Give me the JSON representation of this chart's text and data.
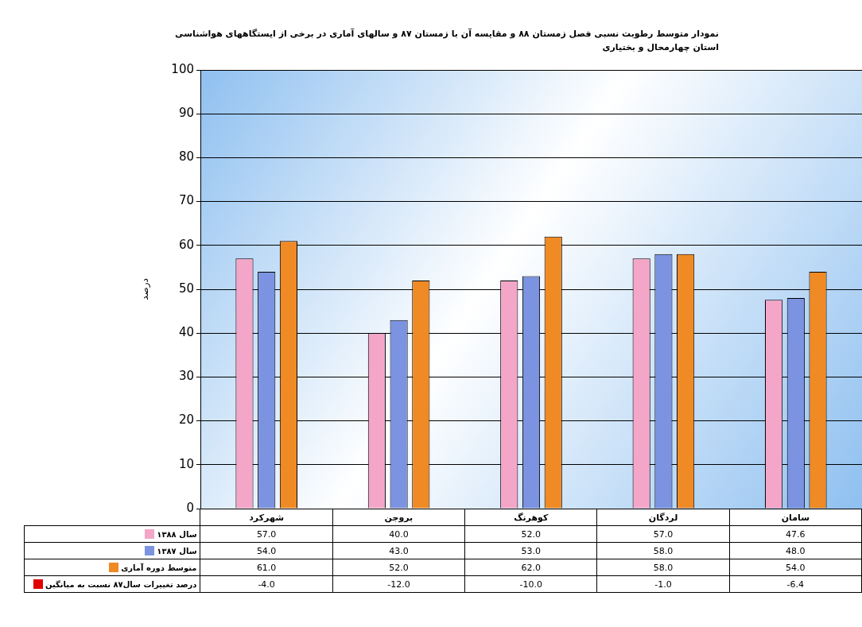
{
  "chart_data": {
    "type": "bar",
    "title": "نمودار متوسط  رطوبت نسبی فصل زمستان ۸۸ و مقایسه آن با زمستان ۸۷ و سالهای آماری در برخی از ایستگاههای هواشناسی استان چهارمحال و بختیاری",
    "ylabel": "درصد",
    "categories": [
      "شهرکرد",
      "بروجن",
      "کوهرنگ",
      "لردگان",
      "سامان"
    ],
    "series": [
      {
        "name": "سال ۱۳۸۸",
        "color": "#f4a6c8",
        "values": [
          57,
          40,
          52,
          57,
          47.6
        ],
        "value_labels": [
          "57.0",
          "40.0",
          "52.0",
          "57.0",
          "47.6"
        ]
      },
      {
        "name": "سال ۱۳۸۷",
        "color": "#7b93e0",
        "values": [
          54,
          43,
          53,
          58,
          48
        ],
        "value_labels": [
          "54.0",
          "43.0",
          "53.0",
          "58.0",
          "48.0"
        ]
      },
      {
        "name": "متوسط دوره آماری",
        "color": "#f08a24",
        "values": [
          61,
          52,
          62,
          58,
          54
        ],
        "value_labels": [
          "61.0",
          "52.0",
          "62.0",
          "58.0",
          "54.0"
        ]
      },
      {
        "name": "درصد تغییرات سال۸۷ نسبت به میانگین",
        "color": "#e00000",
        "values": [
          null,
          null,
          null,
          null,
          null
        ],
        "value_labels": [
          "-4.0",
          "-12.0",
          "-10.0",
          "-1.0",
          "-6.4"
        ]
      }
    ],
    "ylim": [
      0,
      100
    ],
    "yticks": [
      0,
      10,
      20,
      30,
      40,
      50,
      60,
      70,
      80,
      90,
      100
    ],
    "grid": "y",
    "legend": "bottom"
  }
}
